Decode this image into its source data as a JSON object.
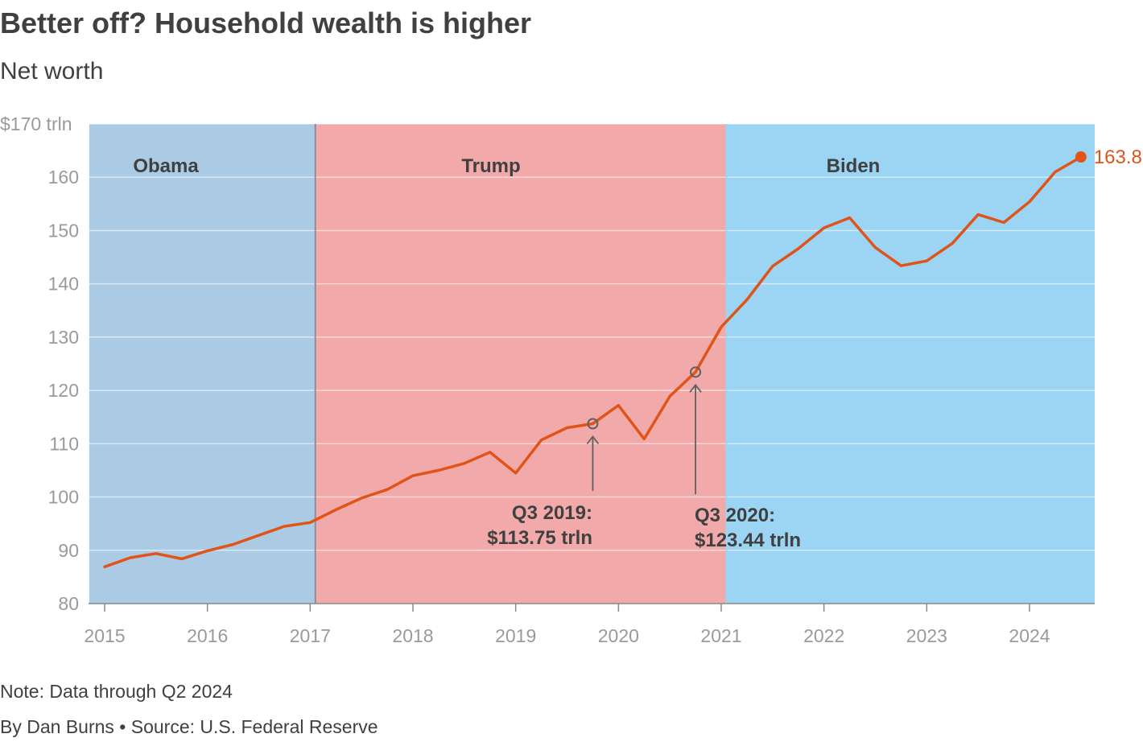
{
  "title": "Better off? Household wealth is higher",
  "subtitle": "Net worth",
  "note": "Note: Data through Q2 2024",
  "credit": "By Dan Burns • Source: U.S. Federal Reserve",
  "chart_data": {
    "type": "line",
    "title": "Better off? Household wealth is higher",
    "subtitle": "Net worth",
    "xlabel": "",
    "ylabel": "",
    "ylim": [
      80,
      170
    ],
    "xlim": [
      2015.0,
      2024.75
    ],
    "y_ticks": [
      80,
      90,
      100,
      110,
      120,
      130,
      140,
      150,
      160,
      170
    ],
    "y_tick_labels": [
      "80",
      "90",
      "100",
      "110",
      "120",
      "130",
      "140",
      "150",
      "160",
      "$170 trln"
    ],
    "x_ticks": [
      2015,
      2016,
      2017,
      2018,
      2019,
      2020,
      2021,
      2022,
      2023,
      2024
    ],
    "x_tick_labels": [
      "2015",
      "2016",
      "2017",
      "2018",
      "2019",
      "2020",
      "2021",
      "2022",
      "2023",
      "2024"
    ],
    "grid": true,
    "line_color": "#e0541a",
    "eras": [
      {
        "label": "Obama",
        "start": 2014.85,
        "end": 2017.05,
        "color": "#abcbe4"
      },
      {
        "label": "Trump",
        "start": 2017.05,
        "end": 2021.05,
        "color": "#f2a9a9"
      },
      {
        "label": "Biden",
        "start": 2021.05,
        "end": 2024.65,
        "color": "#9bd5f3"
      }
    ],
    "x": [
      2015.0,
      2015.25,
      2015.5,
      2015.75,
      2016.0,
      2016.25,
      2016.5,
      2016.75,
      2017.0,
      2017.25,
      2017.5,
      2017.75,
      2018.0,
      2018.25,
      2018.5,
      2018.75,
      2019.0,
      2019.25,
      2019.5,
      2019.75,
      2020.0,
      2020.25,
      2020.5,
      2020.75,
      2021.0,
      2021.25,
      2021.5,
      2021.75,
      2022.0,
      2022.25,
      2022.5,
      2022.75,
      2023.0,
      2023.25,
      2023.5,
      2023.75,
      2024.0,
      2024.25,
      2024.5
    ],
    "series": [
      {
        "values": [
          86.9,
          88.6,
          89.4,
          88.4,
          89.9,
          91.1,
          92.8,
          94.5,
          95.2,
          97.6,
          99.8,
          101.4,
          104.0,
          105.0,
          106.3,
          108.4,
          104.5,
          110.7,
          113.0,
          113.75,
          117.2,
          110.9,
          118.9,
          123.44,
          131.9,
          137.0,
          143.3,
          146.6,
          150.5,
          152.4,
          146.8,
          143.4,
          144.3,
          147.6,
          153.0,
          151.5,
          155.4,
          161.0,
          163.8
        ]
      }
    ],
    "annotations": [
      {
        "x": 2019.75,
        "y": 113.75,
        "line1": "Q3 2019:",
        "line2": "$113.75 trln"
      },
      {
        "x": 2020.75,
        "y": 123.44,
        "line1": "Q3 2020:",
        "line2": "$123.44 trln"
      }
    ],
    "end_label": "163.8"
  }
}
